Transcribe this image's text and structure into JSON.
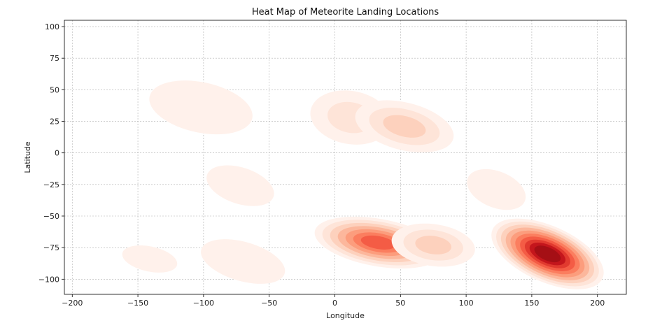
{
  "chart_data": {
    "type": "heatmap",
    "title": "Heat Map of Meteorite Landing Locations",
    "xlabel": "Longitude",
    "ylabel": "Latitude",
    "xlim": [
      -206,
      222
    ],
    "ylim": [
      -112,
      105
    ],
    "xticks": [
      -200,
      -150,
      -100,
      -50,
      0,
      50,
      100,
      150,
      200
    ],
    "yticks": [
      -100,
      -75,
      -50,
      -25,
      0,
      25,
      50,
      75,
      100
    ],
    "grid": true,
    "colormap": "Reds",
    "colors": {
      "grid": "#b0b0b0",
      "low": "#fff5f0",
      "mid": "#fc9272",
      "high": "#a50f15"
    },
    "clusters": [
      {
        "lon": -102,
        "lat": 36,
        "peak": 0.14
      },
      {
        "lon": 12,
        "lat": 28,
        "peak": 0.24
      },
      {
        "lon": 53,
        "lat": 21,
        "peak": 0.3
      },
      {
        "lon": -72,
        "lat": -26,
        "peak": 0.1
      },
      {
        "lon": 123,
        "lat": -29,
        "peak": 0.1
      },
      {
        "lon": 33,
        "lat": -71,
        "peak": 0.72
      },
      {
        "lon": 75,
        "lat": -73,
        "peak": 0.26
      },
      {
        "lon": 162,
        "lat": -80,
        "peak": 1.0
      },
      {
        "lon": -141,
        "lat": -84,
        "peak": 0.08
      },
      {
        "lon": -70,
        "lat": -86,
        "peak": 0.12
      }
    ]
  }
}
